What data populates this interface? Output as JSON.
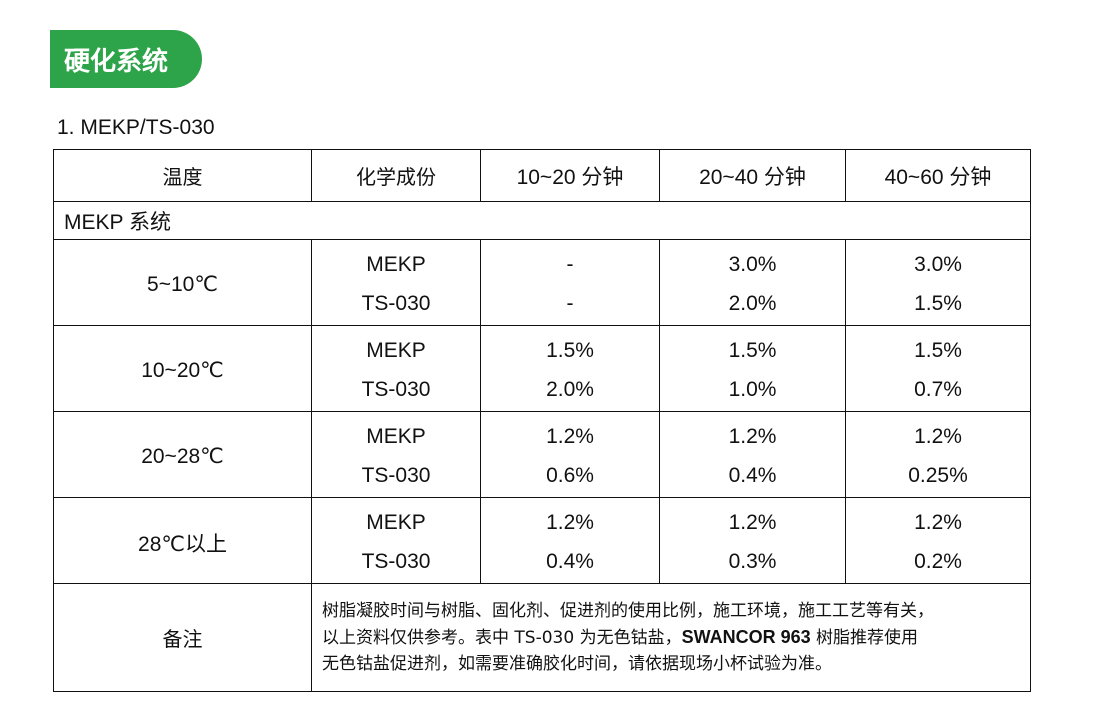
{
  "section_title": "硬化系统",
  "subheading": "1.  MEKP/TS-030",
  "table": {
    "headers": [
      "温度",
      "化学成份",
      "10~20 分钟",
      "20~40  分钟",
      "40~60  分钟"
    ],
    "system_label": "MEKP  系统",
    "groups": [
      {
        "temp": "5~10℃",
        "rows": [
          {
            "chem": "MEKP",
            "v1": "-",
            "v2": "3.0%",
            "v3": "3.0%"
          },
          {
            "chem": "TS-030",
            "v1": "-",
            "v2": "2.0%",
            "v3": "1.5%"
          }
        ]
      },
      {
        "temp": "10~20℃",
        "rows": [
          {
            "chem": "MEKP",
            "v1": "1.5%",
            "v2": "1.5%",
            "v3": "1.5%"
          },
          {
            "chem": "TS-030",
            "v1": "2.0%",
            "v2": "1.0%",
            "v3": "0.7%"
          }
        ]
      },
      {
        "temp": "20~28℃",
        "rows": [
          {
            "chem": "MEKP",
            "v1": "1.2%",
            "v2": "1.2%",
            "v3": "1.2%"
          },
          {
            "chem": "TS-030",
            "v1": "0.6%",
            "v2": "0.4%",
            "v3": "0.25%"
          }
        ]
      },
      {
        "temp": "28℃以上",
        "rows": [
          {
            "chem": "MEKP",
            "v1": "1.2%",
            "v2": "1.2%",
            "v3": "1.2%"
          },
          {
            "chem": "TS-030",
            "v1": "0.4%",
            "v2": "0.3%",
            "v3": "0.2%"
          }
        ]
      }
    ],
    "remark_label": "备注",
    "remark": {
      "line1": "树脂凝胶时间与树脂、固化剂、促进剂的使用比例，施工环境，施工工艺等有关，",
      "line2_a": "以上资料仅供参考。表中 TS-030  为无色钴盐，",
      "line2_bold": "SWANCOR 963",
      "line2_b": " 树脂推荐使用",
      "line3": "无色钴盐促进剂，如需要准确胶化时间，请依据现场小杯试验为准。"
    }
  },
  "colors": {
    "badge": "#2da44a",
    "text": "#111111"
  }
}
